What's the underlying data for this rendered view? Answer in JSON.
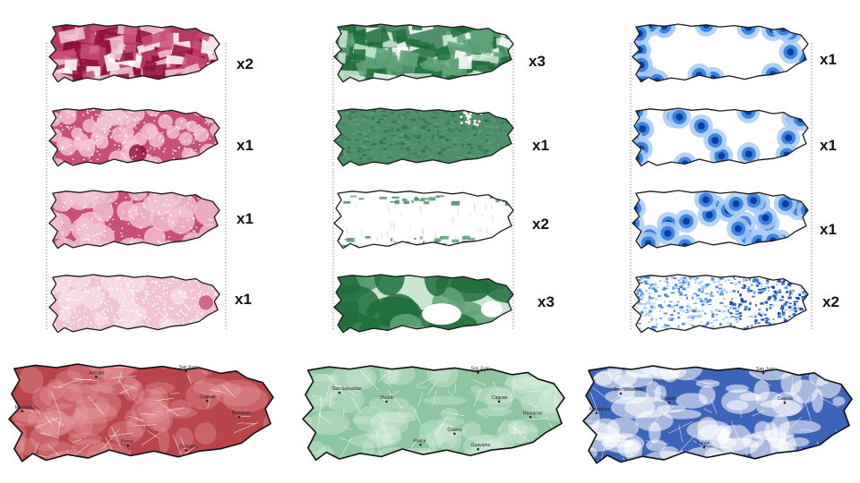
{
  "columns": [
    {
      "name": "red",
      "colors": {
        "dark": "#8e0f3a",
        "mid": "#c84f78",
        "light": "#f2c4d3",
        "base": "#b63a66"
      },
      "layers": [
        {
          "multiplier": "x2",
          "style": "mosaic"
        },
        {
          "multiplier": "x1",
          "style": "halo-dense"
        },
        {
          "multiplier": "x1",
          "style": "halo-large"
        },
        {
          "multiplier": "x1",
          "style": "speckle"
        }
      ]
    },
    {
      "name": "green",
      "colors": {
        "dark": "#1e6e3c",
        "mid": "#5fa378",
        "light": "#c9e6d2",
        "base": "#4f8e6a"
      },
      "layers": [
        {
          "multiplier": "x3",
          "style": "mosaic"
        },
        {
          "multiplier": "x1",
          "style": "texture"
        },
        {
          "multiplier": "x2",
          "style": "coastal-fragments"
        },
        {
          "multiplier": "x3",
          "style": "blobs"
        }
      ]
    },
    {
      "name": "blue",
      "colors": {
        "dark": "#0a3fa8",
        "mid": "#2f7de0",
        "light": "#a8cbf5",
        "base": "#1f63c9"
      },
      "layers": [
        {
          "multiplier": "x1",
          "style": "edge-halos"
        },
        {
          "multiplier": "x1",
          "style": "points-few"
        },
        {
          "multiplier": "x1",
          "style": "points-many"
        },
        {
          "multiplier": "x2",
          "style": "scatter-fill"
        }
      ]
    }
  ],
  "composite_maps": [
    {
      "color": "red",
      "fill": "#b8454a",
      "light": "#e7a1a3",
      "towns": [
        "San Juan",
        "Mayagüez",
        "Arecibo",
        "Caguas",
        "Ponce",
        "Guayama",
        "Humacao"
      ]
    },
    {
      "color": "green",
      "fill": "#8fc6a2",
      "light": "#d8eedf",
      "towns": [
        "San Juan",
        "San Sebastián",
        "Utuado",
        "Caguas",
        "Humacao",
        "Ponce",
        "Guayama",
        "Coamo"
      ]
    },
    {
      "color": "blue",
      "fill": "#3c64b8",
      "light": "#ffffff",
      "towns": [
        "San Juan",
        "San Sebastián",
        "Mayagüez",
        "Utuado",
        "Caguas",
        "Ponce"
      ]
    }
  ]
}
